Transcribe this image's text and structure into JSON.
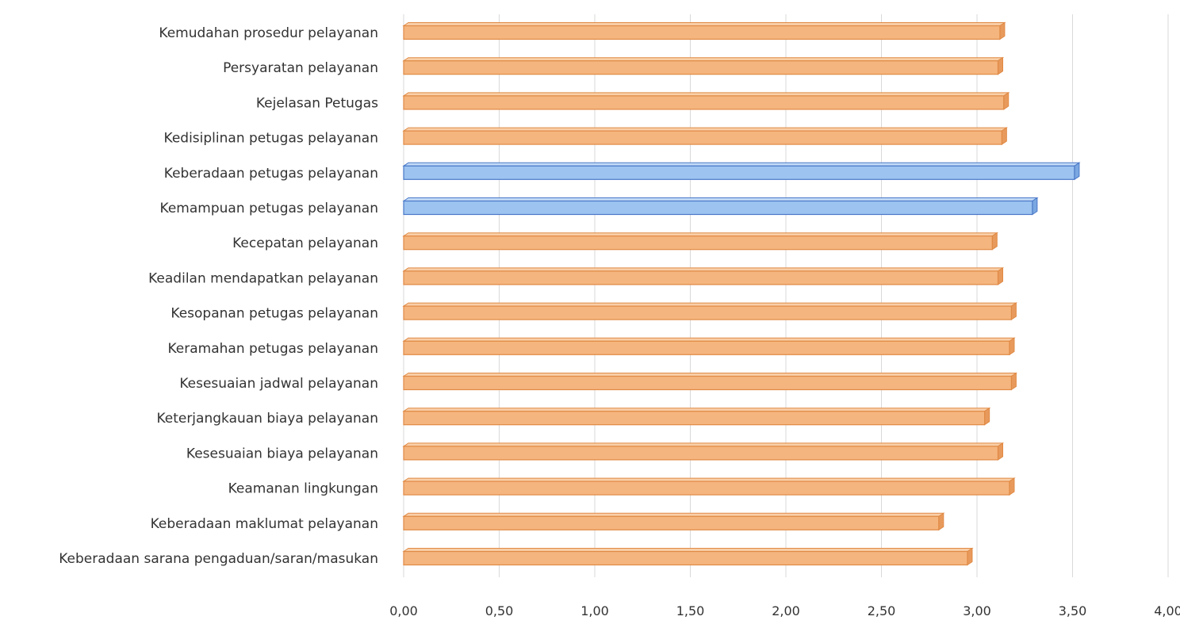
{
  "chart_data": {
    "type": "bar",
    "orientation": "horizontal",
    "title": "",
    "xlabel": "",
    "ylabel": "",
    "xlim": [
      0,
      4
    ],
    "xticks": [
      "0,00",
      "0,50",
      "1,00",
      "1,50",
      "2,00",
      "2,50",
      "3,00",
      "3,50",
      "4,00"
    ],
    "grid": true,
    "legend": "none",
    "colors": {
      "default": "#f5b57e",
      "highlight": "#9dc3f0"
    },
    "categories": [
      "Kemudahan prosedur pelayanan",
      "Persyaratan pelayanan",
      "Kejelasan Petugas",
      "Kedisiplinan petugas pelayanan",
      "Keberadaan petugas pelayanan",
      "Kemampuan petugas pelayanan",
      "Kecepatan pelayanan",
      "Keadilan mendapatkan pelayanan",
      "Kesopanan petugas pelayanan",
      "Keramahan petugas pelayanan",
      "Kesesuaian jadwal pelayanan",
      "Keterjangkauan biaya pelayanan",
      "Kesesuaian biaya pelayanan",
      "Keamanan lingkungan",
      "Keberadaan maklumat pelayanan",
      "Keberadaan sarana pengaduan/saran/masukan"
    ],
    "values": [
      3.12,
      3.11,
      3.14,
      3.13,
      3.51,
      3.29,
      3.08,
      3.11,
      3.18,
      3.17,
      3.18,
      3.04,
      3.11,
      3.17,
      2.8,
      2.95
    ],
    "highlighted": [
      false,
      false,
      false,
      false,
      true,
      true,
      false,
      false,
      false,
      false,
      false,
      false,
      false,
      false,
      false,
      false
    ]
  }
}
